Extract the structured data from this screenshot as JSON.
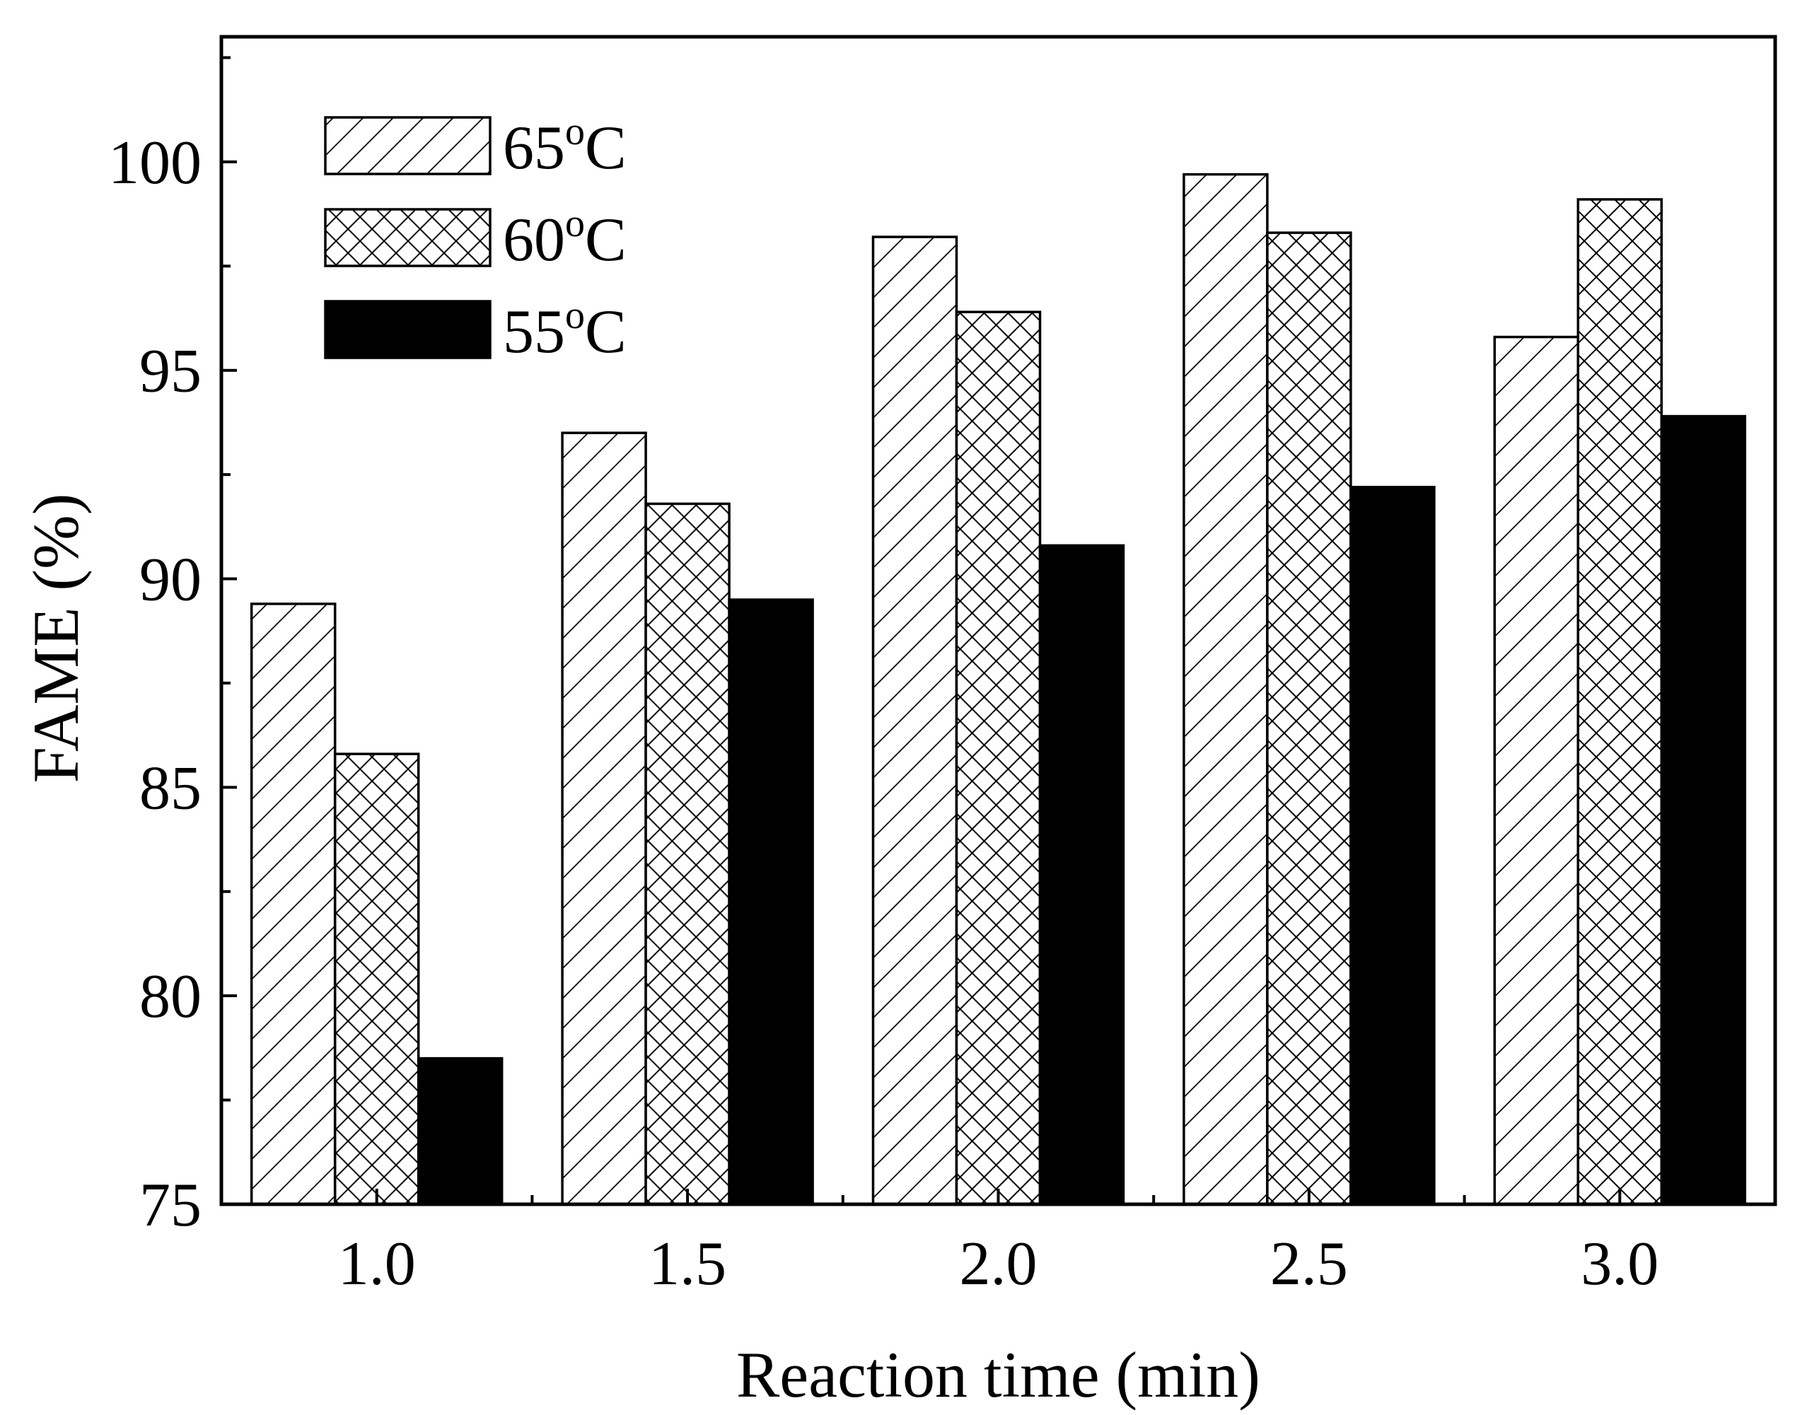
{
  "chart_data": {
    "type": "bar",
    "title": "",
    "xlabel": "Reaction time (min)",
    "ylabel": "FAME (%)",
    "categories": [
      "1.0",
      "1.5",
      "2.0",
      "2.5",
      "3.0"
    ],
    "ylim": [
      75,
      103
    ],
    "yticks": [
      "75",
      "80",
      "85",
      "90",
      "95",
      "100"
    ],
    "legend_position": "top-left",
    "series": [
      {
        "name": "65",
        "unit": "C",
        "pattern": "diagonal-hatch",
        "values": [
          89.4,
          93.5,
          98.2,
          99.7,
          95.8
        ]
      },
      {
        "name": "60",
        "unit": "C",
        "pattern": "cross-hatch",
        "values": [
          85.8,
          91.8,
          96.4,
          98.3,
          99.1
        ]
      },
      {
        "name": "55",
        "unit": "C",
        "pattern": "solid-black",
        "values": [
          78.5,
          89.5,
          90.8,
          92.2,
          93.9
        ]
      }
    ],
    "degree_symbol": "o"
  }
}
